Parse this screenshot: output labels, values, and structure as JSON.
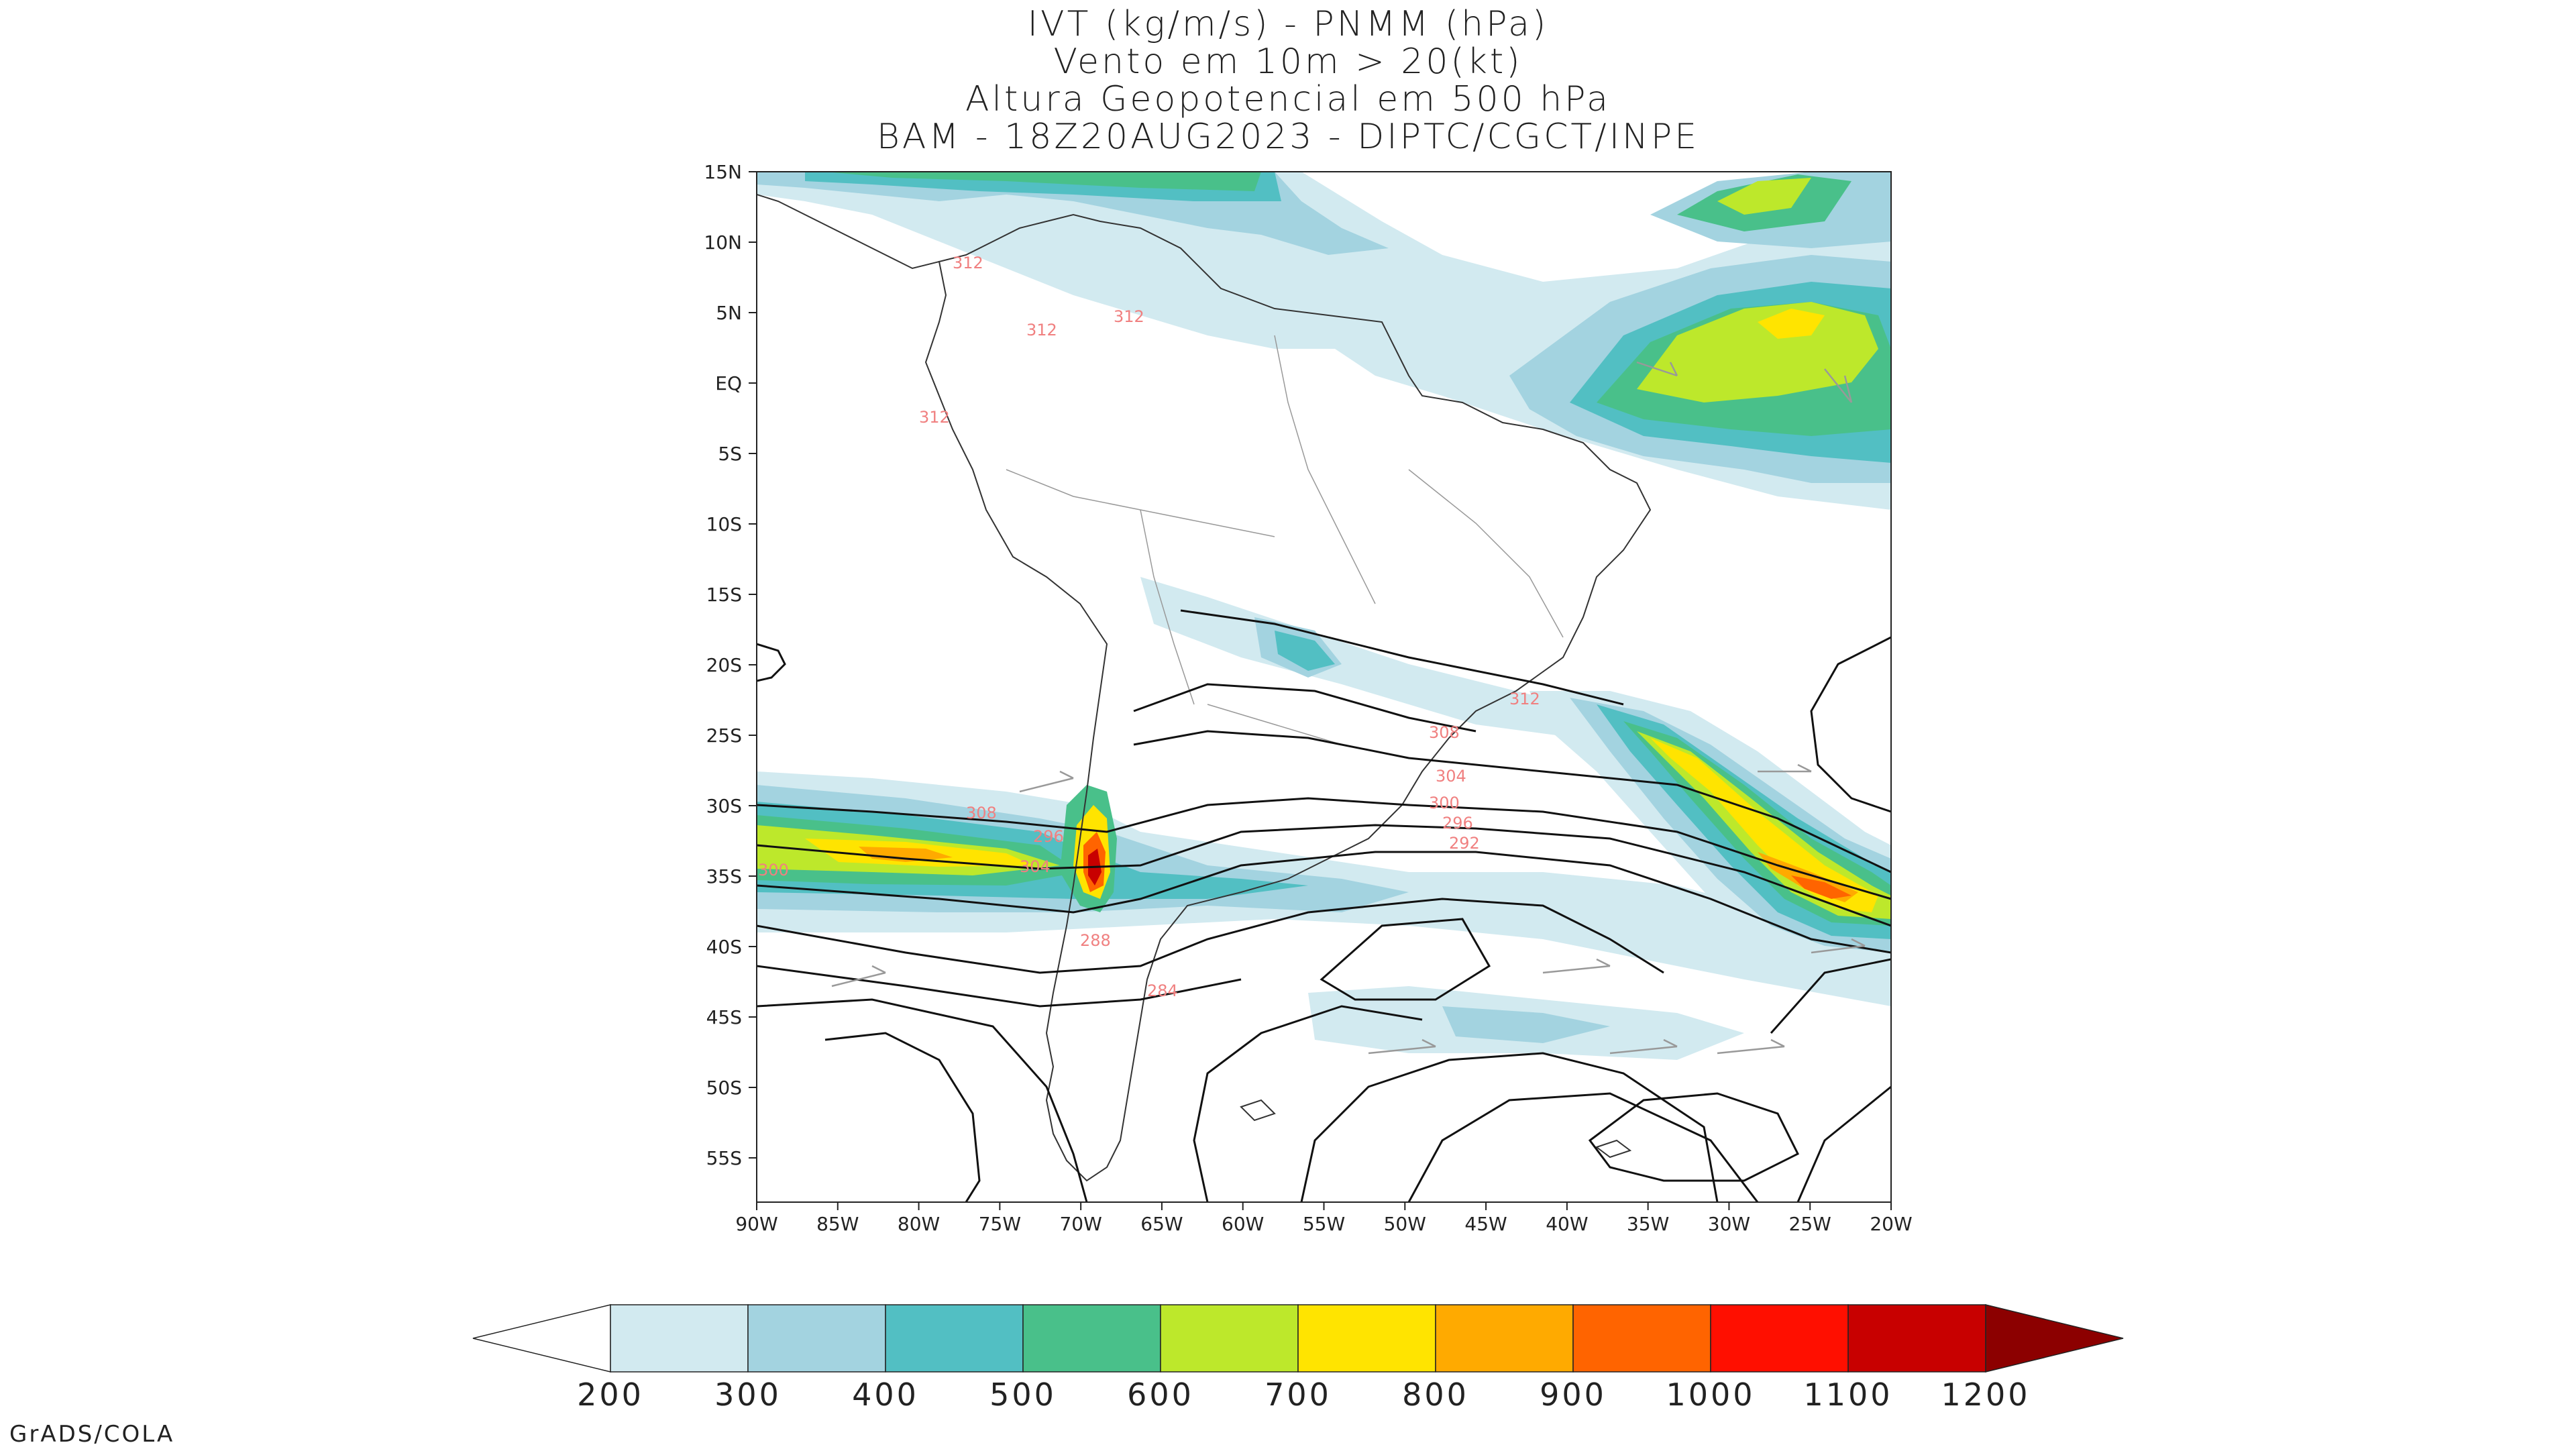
{
  "title_lines": [
    "IVT (kg/m/s) - PNMM (hPa)",
    "Vento em 10m > 20(kt)",
    "Altura Geopotencial em 500 hPa",
    "BAM - 18Z20AUG2023 - DIPTC/CGCT/INPE"
  ],
  "lat_labels": [
    "15N",
    "10N",
    "5N",
    "EQ",
    "5S",
    "10S",
    "15S",
    "20S",
    "25S",
    "30S",
    "35S",
    "40S",
    "45S",
    "50S",
    "55S"
  ],
  "lon_labels": [
    "90W",
    "85W",
    "80W",
    "75W",
    "70W",
    "65W",
    "60W",
    "55W",
    "50W",
    "45W",
    "40W",
    "35W",
    "30W",
    "25W",
    "20W"
  ],
  "colorbar": {
    "labels": [
      "200",
      "300",
      "400",
      "500",
      "600",
      "700",
      "800",
      "900",
      "1000",
      "1100",
      "1200"
    ],
    "colors": [
      "#d2eaf0",
      "#a3d3e0",
      "#52bfc3",
      "#49c08a",
      "#bde82b",
      "#ffe400",
      "#ffaa00",
      "#ff6400",
      "#ff0f00",
      "#c80000",
      "#8c0000"
    ],
    "under_color": "#ffffff"
  },
  "contour_labels": [
    "312",
    "312",
    "312",
    "312",
    "312",
    "308",
    "308",
    "304",
    "304",
    "300",
    "300",
    "296",
    "296",
    "292",
    "288",
    "284"
  ],
  "footer": "GrADS/COLA"
}
